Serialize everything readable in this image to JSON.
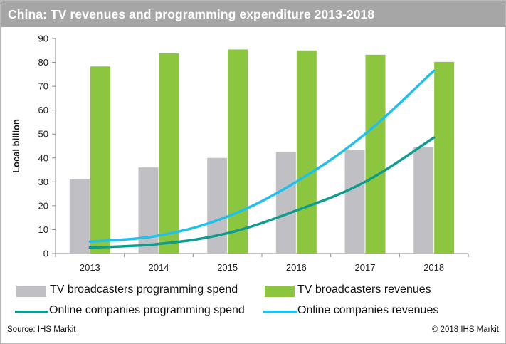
{
  "title": "China: TV revenues and programming expenditure 2013-2018",
  "source": "Source: IHS Markit",
  "copyright": "© 2018 IHS Markit",
  "colors": {
    "tv_spend": "#c0c0c4",
    "tv_revenues": "#8cc63f",
    "online_spend": "#0e9c8e",
    "online_revenues": "#1ec0ee"
  },
  "chart_data": {
    "type": "bar",
    "categories": [
      "2013",
      "2014",
      "2015",
      "2016",
      "2017",
      "2018"
    ],
    "ylabel": "Local billion",
    "xlabel": "",
    "ylim": [
      0,
      90
    ],
    "yticks": [
      0,
      10,
      20,
      30,
      40,
      50,
      60,
      70,
      80,
      90
    ],
    "grid": false,
    "legend_position": "bottom",
    "series": [
      {
        "name": "TV broadcasters programming spend",
        "type": "bar",
        "values": [
          31,
          36,
          40,
          42.5,
          43.2,
          44.5
        ]
      },
      {
        "name": "TV broadcasters revenues",
        "type": "bar",
        "values": [
          78.3,
          83.8,
          85.4,
          85,
          83.2,
          80.2
        ]
      },
      {
        "name": "Online companies programming spend",
        "type": "line",
        "values": [
          2.5,
          4,
          8.5,
          18,
          30,
          48.5
        ]
      },
      {
        "name": "Online companies revenues",
        "type": "line",
        "values": [
          5,
          7.5,
          15.5,
          30,
          50,
          76.5
        ]
      }
    ]
  }
}
